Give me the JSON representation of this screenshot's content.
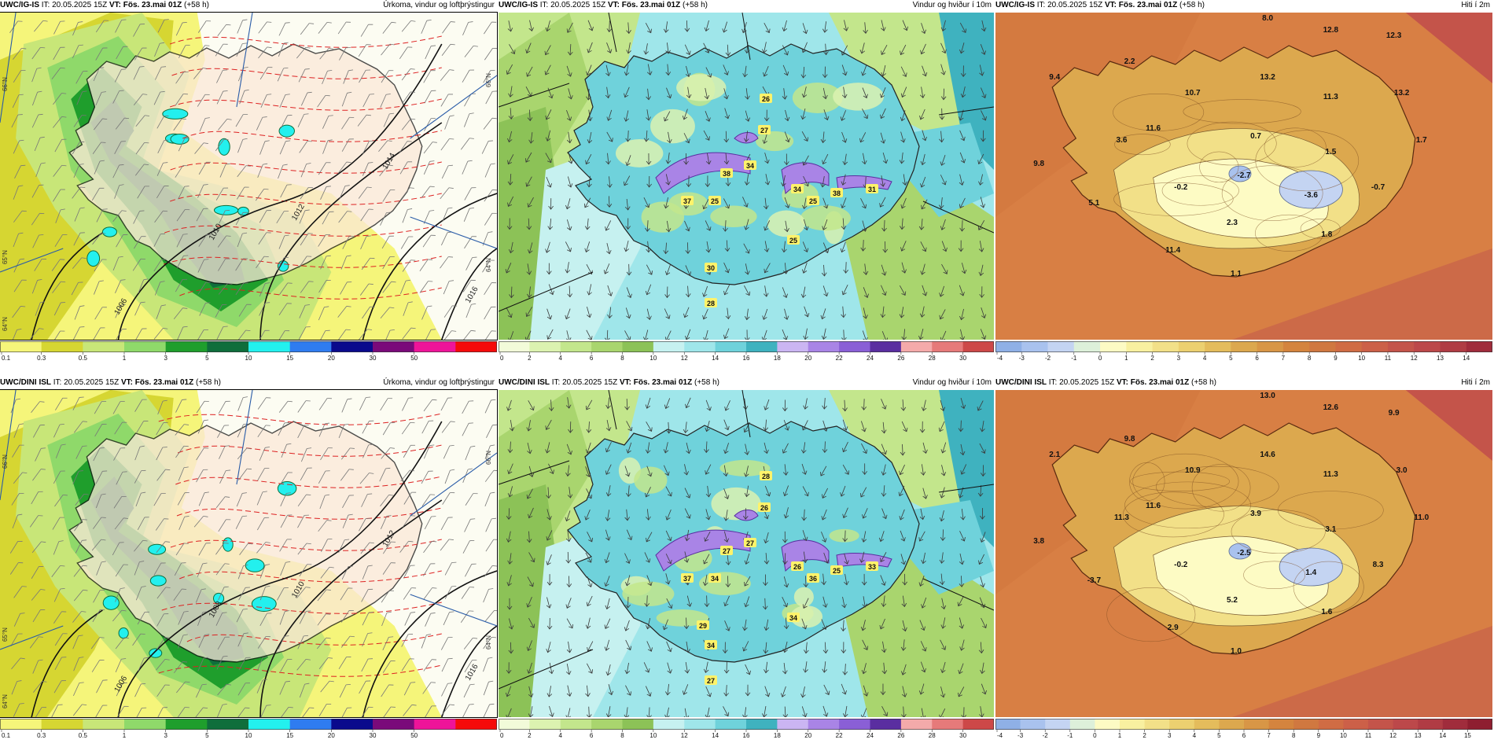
{
  "legends": {
    "precip": {
      "ticks": [
        "0.1",
        "0.3",
        "0.5",
        "1",
        "3",
        "5",
        "10",
        "15",
        "20",
        "30",
        "50"
      ],
      "colors": [
        "#f5f57a",
        "#d6d632",
        "#c8e678",
        "#8fd96a",
        "#1f9e2c",
        "#0f6e3c",
        "#23f0ee",
        "#2f7cf0",
        "#0a0a8c",
        "#7a0a7a",
        "#ee1499",
        "#f50a0a"
      ]
    },
    "wind": {
      "ticks": [
        "0",
        "2",
        "4",
        "6",
        "8",
        "10",
        "12",
        "14",
        "16",
        "18",
        "20",
        "22",
        "24",
        "26",
        "28",
        "30"
      ],
      "colors": [
        "#f2fbd9",
        "#dcf2b0",
        "#c3e68c",
        "#a9d56e",
        "#8cc257",
        "#c6f1f0",
        "#9fe6ea",
        "#6fd2db",
        "#3fb2bf",
        "#cbb5f2",
        "#a984e6",
        "#8a5fd6",
        "#5a2ea0",
        "#f4aaaa",
        "#e67a7a",
        "#cd4848"
      ]
    },
    "temp_top": {
      "ticks": [
        "-4",
        "-3",
        "-2",
        "-1",
        "0",
        "1",
        "2",
        "3",
        "4",
        "5",
        "6",
        "7",
        "8",
        "9",
        "10",
        "11",
        "12",
        "13",
        "14"
      ],
      "colors": [
        "#8fb0e6",
        "#a9c2ee",
        "#c4d4f2",
        "#ddf0da",
        "#fdfbc4",
        "#f8f0a0",
        "#f2e088",
        "#ecd070",
        "#e4bc5c",
        "#dca84e",
        "#d89646",
        "#d4843e",
        "#d07840",
        "#d06c44",
        "#cc6048",
        "#c4544a",
        "#bc484a",
        "#b03c44",
        "#a02c3c"
      ]
    },
    "temp_bottom": {
      "ticks": [
        "-4",
        "-3",
        "-2",
        "-1",
        "0",
        "1",
        "2",
        "3",
        "4",
        "5",
        "6",
        "7",
        "8",
        "9",
        "10",
        "11",
        "12",
        "13",
        "14",
        "15"
      ],
      "colors": [
        "#8fb0e6",
        "#a9c2ee",
        "#c4d4f2",
        "#ddf0da",
        "#fdfbc4",
        "#f8f0a0",
        "#f2e088",
        "#ecd070",
        "#e4bc5c",
        "#dca84e",
        "#d89646",
        "#d4843e",
        "#d07840",
        "#d06c44",
        "#cc6048",
        "#c4544a",
        "#bc484a",
        "#b03c44",
        "#a02c3c",
        "#8e1e30"
      ]
    }
  },
  "panels": [
    {
      "model": "UWC/IG-IS",
      "it": "IT: 20.05.2025 15Z",
      "vt": "VT: Fös. 23.mai 01Z",
      "lead": "(+58 h)",
      "field": "Úrkoma, vindur og loftþrýstingur",
      "kind": "precip",
      "legend": "precip",
      "side_labels": [
        "66°N",
        "65°N",
        "64°N"
      ],
      "isobars": [
        "1006",
        "1010",
        "1012",
        "1014",
        "1016"
      ]
    },
    {
      "model": "UWC/IG-IS",
      "it": "IT: 20.05.2025 15Z",
      "vt": "VT: Fös. 23.mai 01Z",
      "lead": "(+58 h)",
      "field": "Vindur og hviður í 10m",
      "kind": "wind",
      "legend": "wind",
      "gusts": [
        "26",
        "27",
        "34",
        "38",
        "25",
        "37",
        "25",
        "34",
        "38",
        "31",
        "25",
        "30",
        "28"
      ]
    },
    {
      "model": "UWC/IG-IS",
      "it": "IT: 20.05.2025 15Z",
      "vt": "VT: Fös. 23.mai 01Z",
      "lead": "(+58 h)",
      "field": "Hiti í 2m",
      "kind": "temp",
      "legend": "temp_top",
      "temps": [
        "8.0",
        "12.8",
        "12.3",
        "9.4",
        "2.2",
        "13.2",
        "10.7",
        "11.3",
        "13.2",
        "11.6",
        "3.6",
        "0.7",
        "1.7",
        "1.5",
        "9.8",
        "-0.2",
        "-2.7",
        "-3.6",
        "-0.7",
        "5.1",
        "2.3",
        "11.4",
        "1.8",
        "1.1"
      ]
    },
    {
      "model": "UWC/DINI ISL",
      "it": "IT: 20.05.2025 15Z",
      "vt": "VT: Fös. 23.mai 01Z",
      "lead": "(+58 h)",
      "field": "Úrkoma, vindur og loftþrýstingur",
      "kind": "precip",
      "legend": "precip",
      "side_labels": [
        "66°N",
        "65°N",
        "64°N"
      ],
      "isobars": [
        "1006",
        "1008",
        "1010",
        "1012",
        "1016"
      ]
    },
    {
      "model": "UWC/DINI ISL",
      "it": "IT: 20.05.2025 15Z",
      "vt": "VT: Fös. 23.mai 01Z",
      "lead": "(+58 h)",
      "field": "Vindur og hviður í 10m",
      "kind": "wind",
      "legend": "wind",
      "gusts": [
        "28",
        "26",
        "27",
        "27",
        "34",
        "37",
        "36",
        "26",
        "25",
        "33",
        "34",
        "34",
        "27",
        "29"
      ]
    },
    {
      "model": "UWC/DINI ISL",
      "it": "IT: 20.05.2025 15Z",
      "vt": "VT: Fös. 23.mai 01Z",
      "lead": "(+58 h)",
      "field": "Hiti í 2m",
      "kind": "temp",
      "legend": "temp_bottom",
      "temps": [
        "13.0",
        "12.6",
        "9.9",
        "2.1",
        "9.8",
        "14.6",
        "10.9",
        "11.3",
        "3.0",
        "11.6",
        "11.3",
        "3.9",
        "11.0",
        "3.1",
        "3.8",
        "-0.2",
        "-2.5",
        "1.4",
        "8.3",
        "-3.7",
        "5.2",
        "2.9",
        "1.6",
        "1.0"
      ]
    }
  ]
}
